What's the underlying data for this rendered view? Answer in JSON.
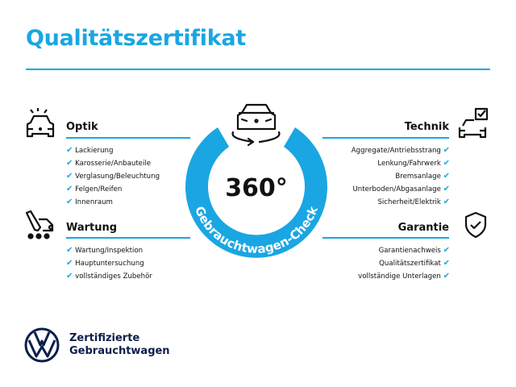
{
  "title": "Qualitätszertifikat",
  "center": {
    "big": "360°",
    "arc_text": "Gebrauchtwagen-Check"
  },
  "sections": {
    "optik": {
      "title": "Optik",
      "items": [
        "Lackierung",
        "Karosserie/Anbauteile",
        "Verglasung/Beleuchtung",
        "Felgen/Reifen",
        "Innenraum"
      ]
    },
    "wartung": {
      "title": "Wartung",
      "items": [
        "Wartung/Inspektion",
        "Hauptuntersuchung",
        "vollständiges Zubehör"
      ]
    },
    "technik": {
      "title": "Technik",
      "items": [
        "Aggregate/Antriebsstrang",
        "Lenkung/Fahrwerk",
        "Bremsanlage",
        "Unterboden/Abgasanlage",
        "Sicherheit/Elektrik"
      ]
    },
    "garantie": {
      "title": "Garantie",
      "items": [
        "Garantienachweis",
        "Qualitätszertifikat",
        "vollständige Unterlagen"
      ]
    }
  },
  "check": "✔",
  "brand": {
    "line1": "Zertifizierte",
    "line2": "Gebrauchtwagen"
  },
  "colors": {
    "accent": "#1aa6e2",
    "navy": "#0b1f4b"
  }
}
